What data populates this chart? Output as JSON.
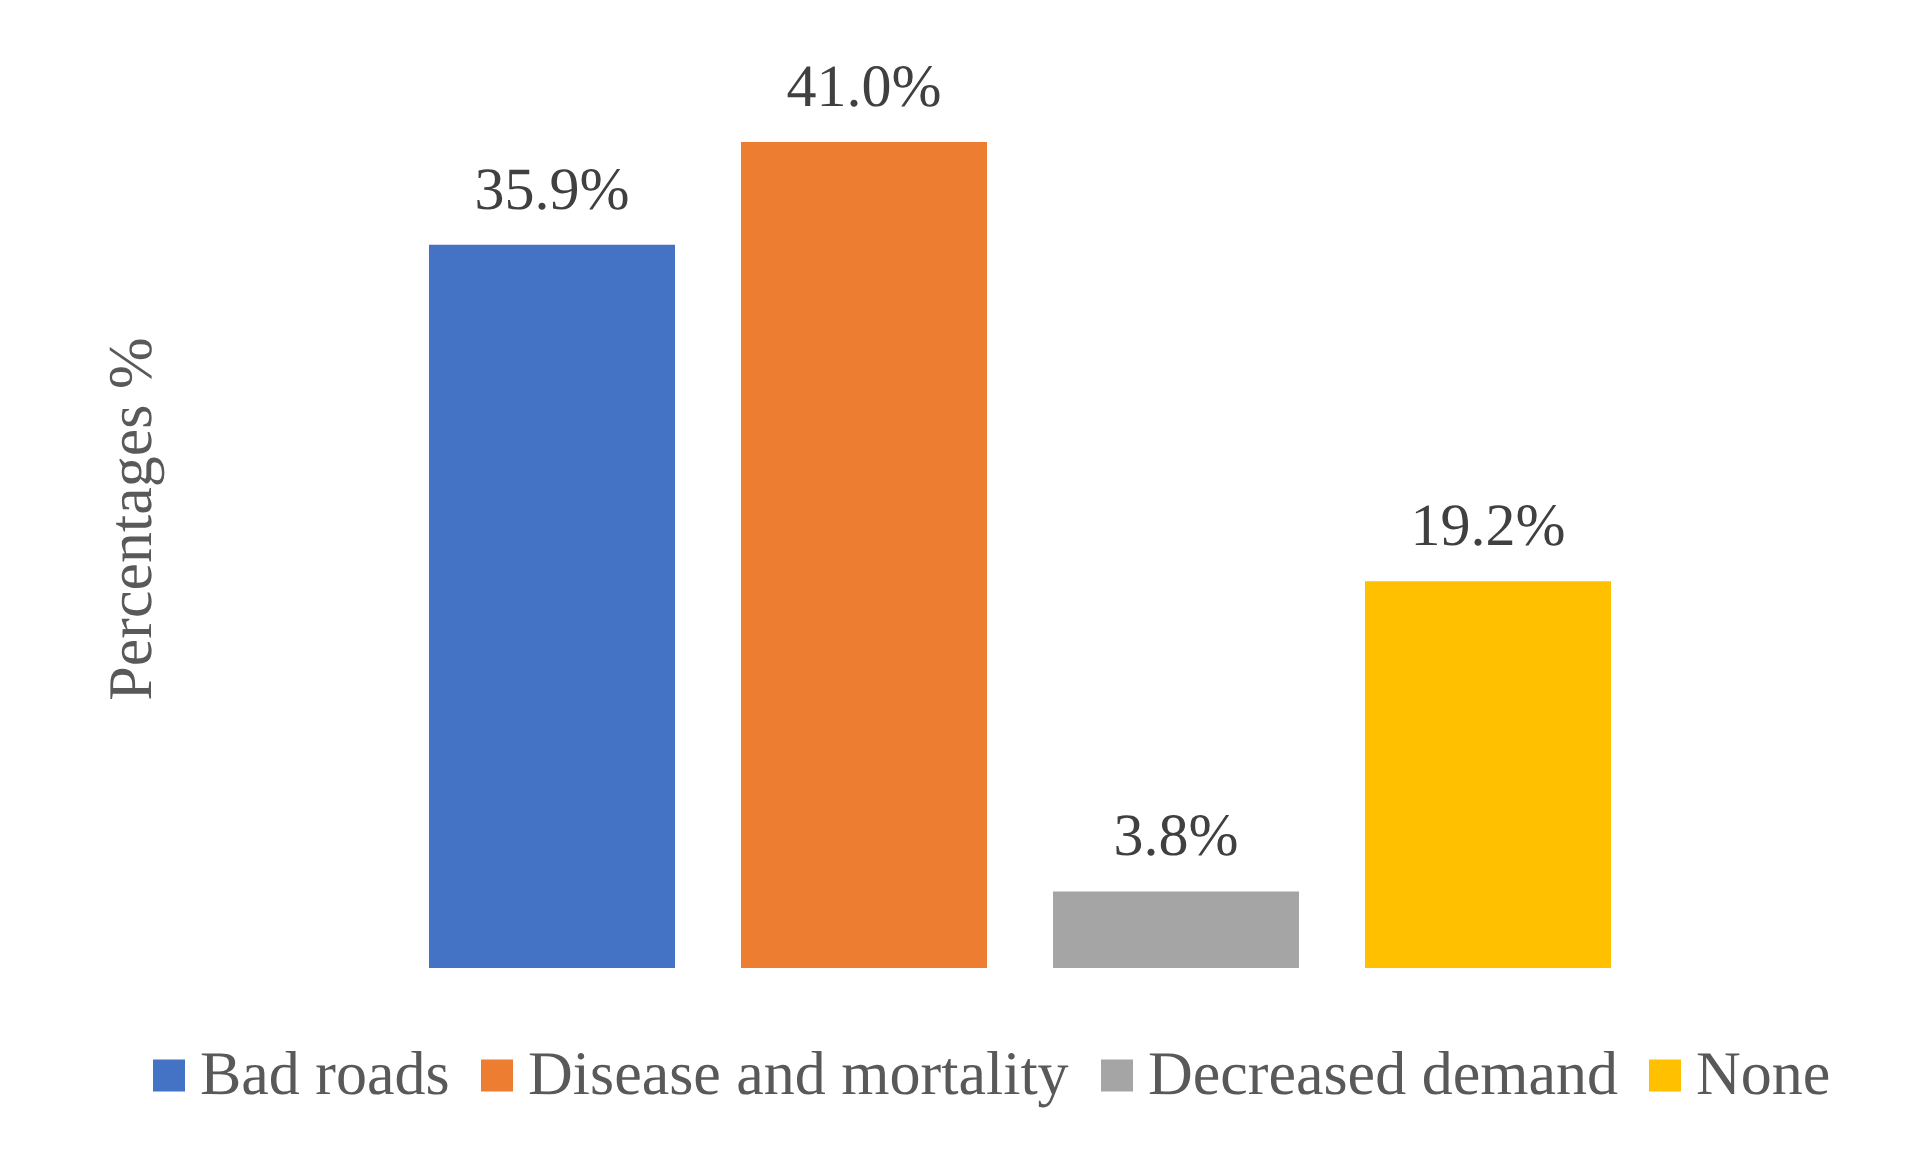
{
  "chart_data": {
    "type": "bar",
    "ylabel": "Percentages %",
    "categories": [
      null
    ],
    "series": [
      {
        "name": "Bad roads",
        "color": "#4472c4",
        "values": [
          35.9
        ],
        "value_labels": [
          "35.9%"
        ]
      },
      {
        "name": "Disease and mortality",
        "color": "#ed7d31",
        "values": [
          41.0
        ],
        "value_labels": [
          "41.0%"
        ]
      },
      {
        "name": "Decreased demand",
        "color": "#a5a5a5",
        "values": [
          3.8
        ],
        "value_labels": [
          "3.8%"
        ]
      },
      {
        "name": "None",
        "color": "#ffc000",
        "values": [
          19.2
        ],
        "value_labels": [
          "19.2%"
        ]
      }
    ],
    "legend": "bottom",
    "tick_labels": false,
    "grid": false
  }
}
